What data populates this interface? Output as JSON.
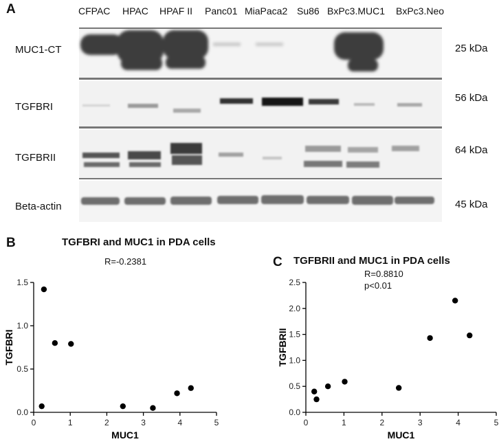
{
  "western_blot": {
    "panel_label": "A",
    "lanes": [
      "CFPAC",
      "HPAC",
      "HPAF II",
      "Panc01",
      "MiaPaca2",
      "Su86",
      "BxPc3.MUC1",
      "BxPc3.Neo"
    ],
    "rows": [
      {
        "label": "MUC1-CT",
        "kda": "25 kDa"
      },
      {
        "label": "TGFBRI",
        "kda": "56 kDa"
      },
      {
        "label": "TGFBRII",
        "kda": "64 kDa"
      },
      {
        "label": "Beta-actin",
        "kda": "45 kDa"
      }
    ]
  },
  "panels": [
    {
      "panel_label": "B",
      "annotation_lines": [
        "R=-0.2381"
      ]
    },
    {
      "panel_label": "C",
      "annotation_lines": [
        "R=0.8810",
        "p<0.01"
      ]
    }
  ],
  "chart_data": [
    {
      "type": "scatter",
      "title": "TGFBRI and MUC1 in PDA cells",
      "xlabel": "MUC1",
      "ylabel": "TGFBRI",
      "xlim": [
        0,
        5
      ],
      "ylim": [
        0,
        1.5
      ],
      "xticks": [
        "0",
        "1",
        "2",
        "3",
        "4",
        "5"
      ],
      "yticks": [
        "0.0",
        "0.5",
        "1.0",
        "1.5"
      ],
      "points": [
        {
          "x": 0.22,
          "y": 0.07
        },
        {
          "x": 0.28,
          "y": 1.42
        },
        {
          "x": 0.58,
          "y": 0.8
        },
        {
          "x": 1.02,
          "y": 0.79
        },
        {
          "x": 2.44,
          "y": 0.07
        },
        {
          "x": 3.26,
          "y": 0.05
        },
        {
          "x": 3.92,
          "y": 0.22
        },
        {
          "x": 4.3,
          "y": 0.28
        }
      ]
    },
    {
      "type": "scatter",
      "title": "TGFBRII and MUC1 in PDA cells",
      "xlabel": "MUC1",
      "ylabel": "TGFBRII",
      "xlim": [
        0,
        5
      ],
      "ylim": [
        0,
        2.5
      ],
      "xticks": [
        "0",
        "1",
        "2",
        "3",
        "4",
        "5"
      ],
      "yticks": [
        "0.0",
        "0.5",
        "1.0",
        "1.5",
        "2.0",
        "2.5"
      ],
      "points": [
        {
          "x": 0.22,
          "y": 0.4
        },
        {
          "x": 0.28,
          "y": 0.25
        },
        {
          "x": 0.58,
          "y": 0.5
        },
        {
          "x": 1.02,
          "y": 0.59
        },
        {
          "x": 2.44,
          "y": 0.47
        },
        {
          "x": 3.26,
          "y": 1.43
        },
        {
          "x": 3.92,
          "y": 2.15
        },
        {
          "x": 4.3,
          "y": 1.48
        }
      ]
    }
  ]
}
